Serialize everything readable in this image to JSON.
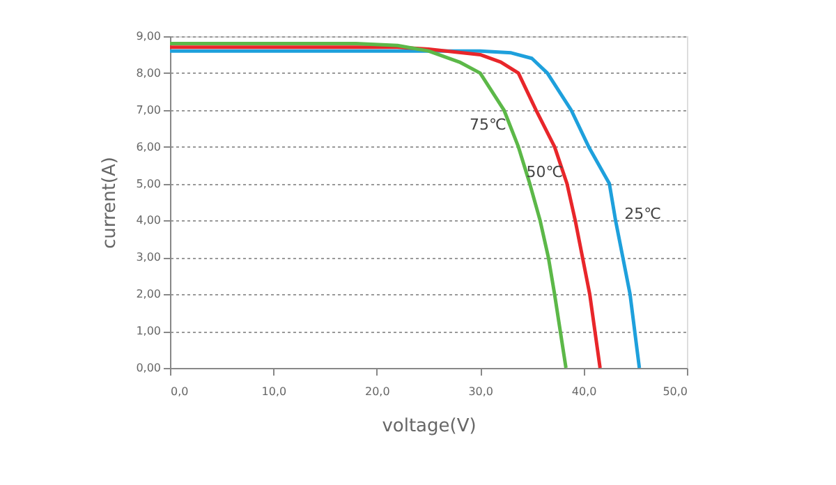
{
  "chart_data": {
    "type": "line",
    "xlabel": "voltage(V)",
    "ylabel": "current(A)",
    "xlim": [
      0,
      50
    ],
    "ylim": [
      0,
      9
    ],
    "xticks": [
      {
        "value": 0,
        "label": "0,0"
      },
      {
        "value": 10,
        "label": "10,0"
      },
      {
        "value": 20,
        "label": "20,0"
      },
      {
        "value": 30,
        "label": "30,0"
      },
      {
        "value": 40,
        "label": "40,0"
      },
      {
        "value": 50,
        "label": "50,0"
      }
    ],
    "yticks": [
      {
        "value": 0,
        "label": "0,00"
      },
      {
        "value": 1,
        "label": "1,00"
      },
      {
        "value": 2,
        "label": "2,00"
      },
      {
        "value": 3,
        "label": "3,00"
      },
      {
        "value": 4,
        "label": "4,00"
      },
      {
        "value": 5,
        "label": "5,00"
      },
      {
        "value": 6,
        "label": "6,00"
      },
      {
        "value": 7,
        "label": "7,00"
      },
      {
        "value": 8,
        "label": "8,00"
      },
      {
        "value": 9,
        "label": "9,00"
      }
    ],
    "grid": "y",
    "marker": "none",
    "line_style": "solid",
    "series": [
      {
        "name": "25℃",
        "color": "#1ea0dc",
        "x": [
          0,
          10,
          20,
          30,
          33,
          35,
          36.5,
          38.8,
          40.5,
          42.5,
          43.1,
          43.8,
          44.5,
          45.4
        ],
        "values": [
          8.6,
          8.6,
          8.6,
          8.6,
          8.55,
          8.4,
          8.0,
          7.0,
          6.0,
          5.0,
          4.0,
          3.0,
          2.0,
          0
        ]
      },
      {
        "name": "50℃",
        "color": "#e8262a",
        "x": [
          0,
          10,
          22,
          25,
          30,
          32,
          33.7,
          35.4,
          37.2,
          38.4,
          39.2,
          39.9,
          40.6,
          41.6
        ],
        "values": [
          8.7,
          8.7,
          8.7,
          8.65,
          8.5,
          8.3,
          8.0,
          7.0,
          6.0,
          5.0,
          4.0,
          3.0,
          2.0,
          0
        ]
      },
      {
        "name": "75℃",
        "color": "#5cb848",
        "x": [
          0,
          10,
          18,
          22,
          25,
          28,
          30,
          32.3,
          33.7,
          34.8,
          35.8,
          36.6,
          37.2,
          38.3
        ],
        "values": [
          8.8,
          8.8,
          8.8,
          8.75,
          8.6,
          8.3,
          8.0,
          7.0,
          6.0,
          5.0,
          4.0,
          3.0,
          2.0,
          0
        ]
      }
    ]
  }
}
